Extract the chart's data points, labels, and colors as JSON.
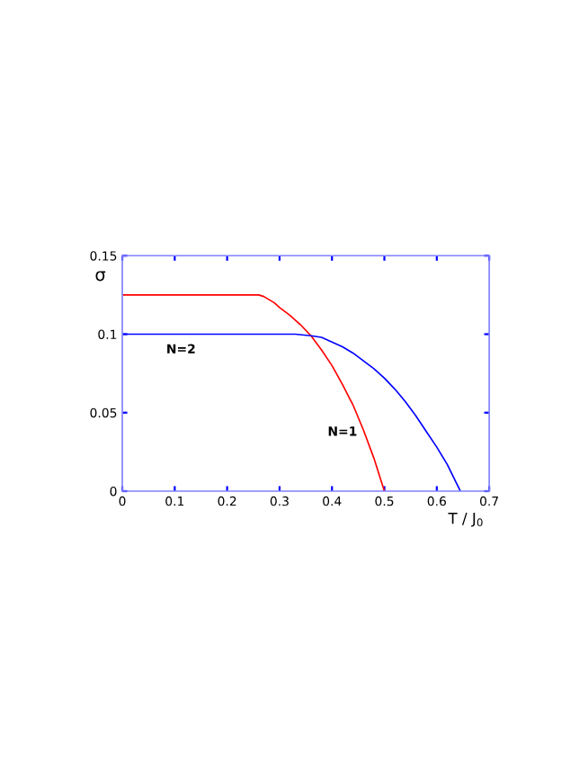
{
  "chart_data": {
    "type": "line",
    "xlabel": "T / J$_{0}$",
    "ylabel": "σ",
    "xlim": [
      0,
      0.7
    ],
    "ylim": [
      0,
      0.15
    ],
    "xticks": [
      0,
      0.1,
      0.2,
      0.3,
      0.4,
      0.5,
      0.6,
      0.7
    ],
    "yticks": [
      0,
      0.05,
      0.1,
      0.15
    ],
    "grid": false,
    "legend": false,
    "marker": "none",
    "line_style": "solid",
    "series": [
      {
        "name": "N=1",
        "color": "#ff0000",
        "x": [
          0,
          0.26,
          0.27,
          0.28,
          0.29,
          0.3,
          0.32,
          0.34,
          0.36,
          0.38,
          0.4,
          0.42,
          0.44,
          0.46,
          0.48,
          0.5
        ],
        "values": [
          0.125,
          0.125,
          0.124,
          0.122,
          0.12,
          0.117,
          0.112,
          0.106,
          0.099,
          0.09,
          0.08,
          0.068,
          0.055,
          0.039,
          0.021,
          0
        ]
      },
      {
        "name": "N=2",
        "color": "#0000ff",
        "x": [
          0,
          0.33,
          0.36,
          0.38,
          0.4,
          0.42,
          0.44,
          0.46,
          0.48,
          0.5,
          0.52,
          0.54,
          0.56,
          0.58,
          0.6,
          0.62,
          0.645
        ],
        "values": [
          0.1,
          0.1,
          0.099,
          0.098,
          0.095,
          0.092,
          0.088,
          0.083,
          0.078,
          0.072,
          0.065,
          0.057,
          0.048,
          0.038,
          0.028,
          0.017,
          0
        ]
      }
    ]
  }
}
